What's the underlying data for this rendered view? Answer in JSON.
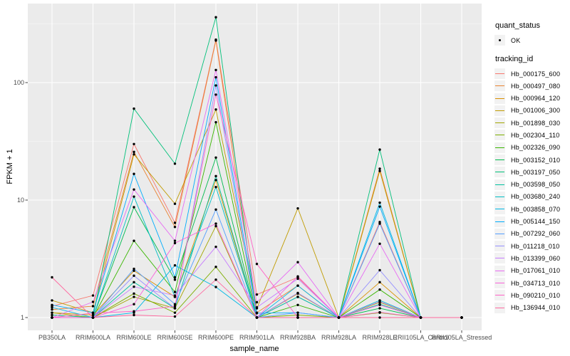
{
  "legend": {
    "quant_status_title": "quant_status",
    "quant_status_entries": [
      {
        "label": "OK"
      }
    ],
    "tracking_id_title": "tracking_id"
  },
  "chart_data": {
    "type": "line",
    "title": "",
    "xlabel": "sample_name",
    "ylabel": "FPKM + 1",
    "yscale": "log10",
    "ylim": [
      0.78,
      470
    ],
    "grid": true,
    "legend_position": "right",
    "panel_bg": "#EBEBEB",
    "grid_color": "#FFFFFF",
    "point_shape": "circle",
    "point_color": "#000000",
    "ytick_labels": [
      "1",
      "10",
      "100"
    ],
    "ytick_values": [
      1,
      10,
      100
    ],
    "categories": [
      "PB350LA",
      "RRIM600LA",
      "RRIM600LE",
      "RRIM600SE",
      "RRIM600PE",
      "RRIM901LA",
      "RRIM928BA",
      "RRIM928LA",
      "RRIM928LE",
      "RRII105LA_Control",
      "RRII105LA_Stressed"
    ],
    "series": [
      {
        "name": "Hb_000175_600",
        "color": "#F8766D",
        "values": [
          1.25,
          1.54,
          30.0,
          6.4,
          232,
          1.57,
          2.2,
          1.0,
          6.5,
          1.0,
          1.0
        ]
      },
      {
        "name": "Hb_000497_080",
        "color": "#EA8331",
        "values": [
          1.17,
          1.25,
          25.7,
          5.9,
          228,
          1.1,
          1.87,
          1.0,
          18.5,
          1.0,
          1.0
        ]
      },
      {
        "name": "Hb_000964_120",
        "color": "#D89000",
        "values": [
          1.1,
          1.05,
          2.5,
          1.5,
          14.8,
          1.0,
          1.6,
          1.0,
          2.0,
          1.0,
          1.0
        ]
      },
      {
        "name": "Hb_001006_300",
        "color": "#C09B00",
        "values": [
          1.4,
          1.1,
          24.5,
          9.3,
          59.0,
          1.2,
          8.5,
          1.0,
          17.7,
          1.0,
          1.0
        ]
      },
      {
        "name": "Hb_001898_030",
        "color": "#A3A500",
        "values": [
          1.1,
          1.0,
          1.5,
          1.2,
          6.0,
          1.0,
          1.5,
          1.0,
          1.35,
          1.0,
          1.0
        ]
      },
      {
        "name": "Hb_002304_110",
        "color": "#7CAE00",
        "values": [
          1.0,
          1.0,
          1.6,
          1.1,
          2.7,
          1.0,
          1.05,
          1.0,
          1.1,
          1.0,
          1.0
        ]
      },
      {
        "name": "Hb_002326_090",
        "color": "#39B600",
        "values": [
          1.0,
          1.0,
          4.5,
          1.65,
          46.0,
          1.0,
          1.28,
          1.0,
          1.73,
          1.0,
          1.0
        ]
      },
      {
        "name": "Hb_003152_010",
        "color": "#00BB4E",
        "values": [
          1.0,
          1.0,
          8.7,
          2.1,
          23.0,
          1.0,
          1.0,
          1.0,
          1.2,
          1.0,
          1.0
        ]
      },
      {
        "name": "Hb_003197_050",
        "color": "#00C079",
        "values": [
          1.05,
          1.0,
          60.0,
          20.4,
          360,
          1.0,
          1.0,
          1.0,
          26.9,
          1.0,
          1.0
        ]
      },
      {
        "name": "Hb_003598_050",
        "color": "#00C19F",
        "values": [
          1.0,
          1.0,
          2.0,
          1.2,
          16.0,
          1.0,
          1.0,
          1.0,
          1.3,
          1.0,
          1.0
        ]
      },
      {
        "name": "Hb_003680_240",
        "color": "#00BFC4",
        "values": [
          1.0,
          1.0,
          10.7,
          1.5,
          12.9,
          1.0,
          1.5,
          1.0,
          1.4,
          1.0,
          1.0
        ]
      },
      {
        "name": "Hb_003858_070",
        "color": "#00B8E5",
        "values": [
          1.22,
          1.0,
          1.1,
          2.78,
          1.82,
          1.0,
          1.87,
          1.0,
          9.5,
          1.0,
          1.0
        ]
      },
      {
        "name": "Hb_005144_150",
        "color": "#00ACFC",
        "values": [
          1.28,
          1.1,
          16.7,
          2.2,
          111,
          1.09,
          1.1,
          1.0,
          8.8,
          1.0,
          1.0
        ]
      },
      {
        "name": "Hb_007292_060",
        "color": "#529EFF",
        "values": [
          1.0,
          1.0,
          2.6,
          1.3,
          8.3,
          1.0,
          1.1,
          1.0,
          6.3,
          1.0,
          1.0
        ]
      },
      {
        "name": "Hb_011218_010",
        "color": "#9590FF",
        "values": [
          1.0,
          1.0,
          2.27,
          1.2,
          94.5,
          1.0,
          1.62,
          1.0,
          2.53,
          1.0,
          1.0
        ]
      },
      {
        "name": "Hb_013399_060",
        "color": "#C77CFF",
        "values": [
          1.0,
          1.0,
          1.83,
          1.54,
          4.0,
          1.22,
          2.14,
          1.0,
          1.37,
          1.0,
          1.0
        ]
      },
      {
        "name": "Hb_017061_010",
        "color": "#E76BF3",
        "values": [
          1.0,
          1.36,
          12.3,
          4.5,
          128,
          1.35,
          2.96,
          1.0,
          4.25,
          1.0,
          1.0
        ]
      },
      {
        "name": "Hb_034713_010",
        "color": "#FA62DB",
        "values": [
          1.0,
          1.0,
          1.3,
          4.3,
          6.3,
          1.0,
          2.24,
          1.0,
          1.28,
          1.0,
          1.0
        ]
      },
      {
        "name": "Hb_090210_010",
        "color": "#FF61C7",
        "values": [
          1.0,
          1.09,
          1.13,
          1.25,
          79.0,
          2.86,
          1.0,
          1.0,
          1.11,
          1.0,
          1.0
        ]
      },
      {
        "name": "Hb_136944_010",
        "color": "#FF689F",
        "values": [
          2.2,
          1.0,
          1.05,
          1.02,
          2.1,
          1.0,
          1.0,
          1.0,
          1.0,
          1.0,
          1.0
        ]
      }
    ]
  }
}
